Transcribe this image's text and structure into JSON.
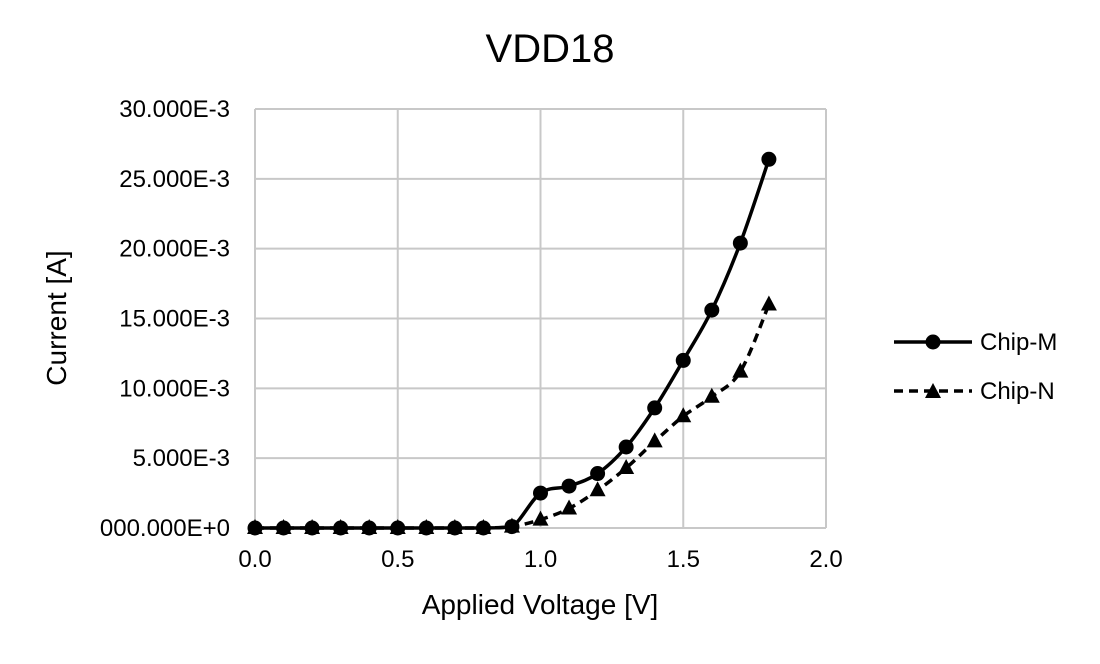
{
  "chart_data": {
    "type": "line",
    "title": "VDD18",
    "xlabel": "Applied Voltage [V]",
    "ylabel": "Current [A]",
    "xlim": [
      0,
      2.0
    ],
    "ylim": [
      0,
      0.03
    ],
    "grid": true,
    "legend_position": "right",
    "x_ticks": [
      0.0,
      0.5,
      1.0,
      1.5,
      2.0
    ],
    "x_tick_labels": [
      "0.0",
      "0.5",
      "1.0",
      "1.5",
      "2.0"
    ],
    "y_ticks": [
      0,
      0.005,
      0.01,
      0.015,
      0.02,
      0.025,
      0.03
    ],
    "y_tick_labels": [
      "000.000E+0",
      "5.000E-3",
      "10.000E-3",
      "15.000E-3",
      "20.000E-3",
      "25.000E-3",
      "30.000E-3"
    ],
    "x": [
      0.0,
      0.1,
      0.2,
      0.3,
      0.4,
      0.5,
      0.6,
      0.7,
      0.8,
      0.9,
      1.0,
      1.1,
      1.2,
      1.3,
      1.4,
      1.5,
      1.6,
      1.7,
      1.8
    ],
    "series": [
      {
        "name": "Chip-M",
        "marker": "circle",
        "line_style": "solid",
        "color": "#000000",
        "values": [
          0.0,
          0.0,
          0.0,
          0.0,
          0.0,
          0.0,
          0.0,
          0.0,
          0.0,
          0.0001,
          0.0025,
          0.003,
          0.0039,
          0.0058,
          0.0086,
          0.012,
          0.0156,
          0.0204,
          0.0264
        ]
      },
      {
        "name": "Chip-N",
        "marker": "triangle",
        "line_style": "dashed",
        "color": "#000000",
        "values": [
          0.0,
          0.0,
          0.0,
          0.0,
          0.0,
          0.0,
          0.0,
          0.0,
          0.0,
          0.0001,
          0.0006,
          0.0014,
          0.0027,
          0.0043,
          0.0062,
          0.008,
          0.0094,
          0.0112,
          0.016
        ]
      }
    ]
  },
  "colors": {
    "gridline": "#c8c8c8",
    "series": "#000000",
    "background": "#ffffff"
  }
}
